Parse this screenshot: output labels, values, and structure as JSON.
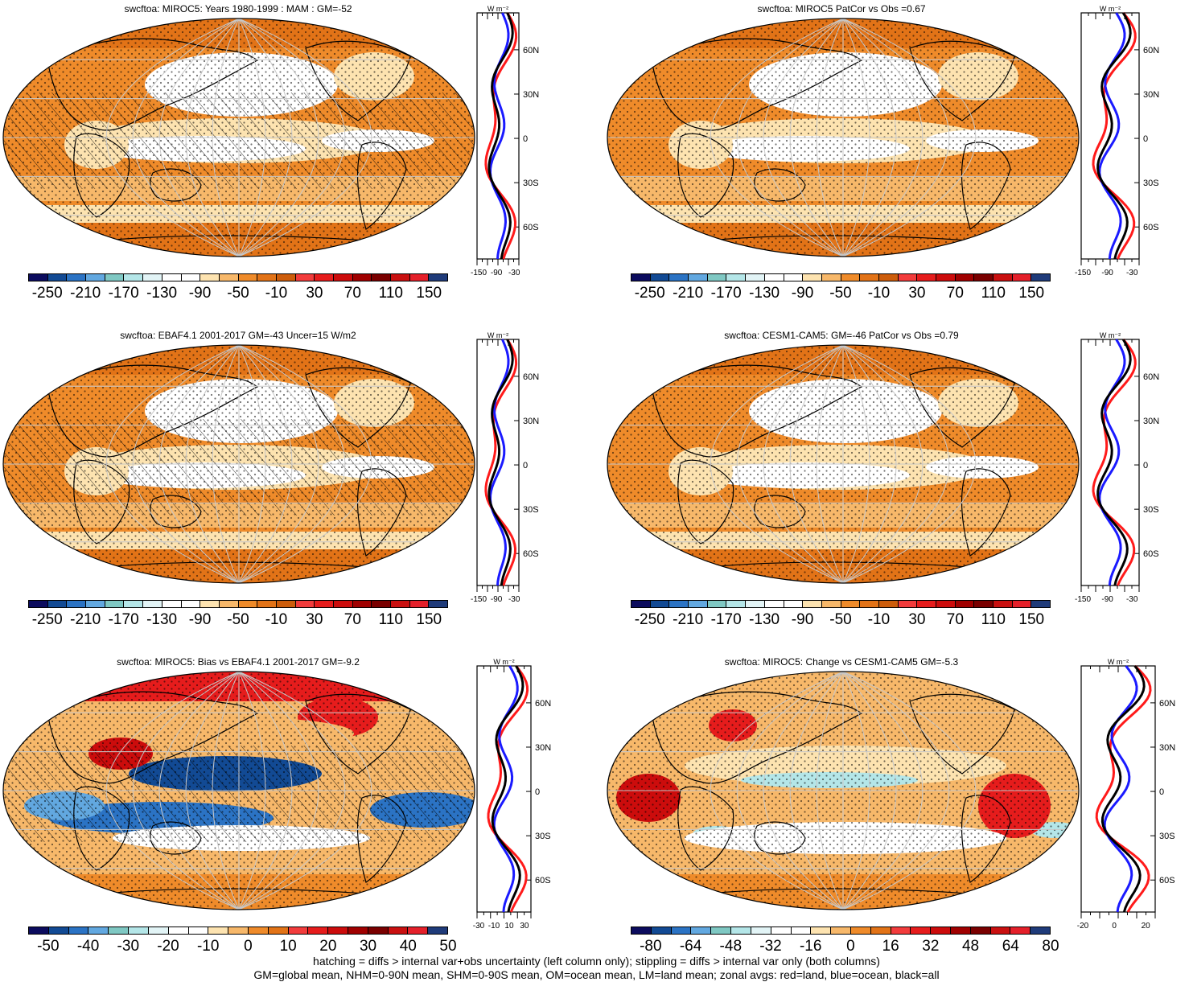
{
  "colors": {
    "land_line": "#ff1a1a",
    "ocean_line": "#1a1aff",
    "all_line": "#000000",
    "grid": "#c8c8c8",
    "coast": "#000000"
  },
  "colorbar_a": {
    "colors": [
      "#0c0c5e",
      "#124a94",
      "#2b73c4",
      "#62a8e0",
      "#7fc8c3",
      "#b4e6e8",
      "#e2f4f6",
      "#ffffff",
      "#ffffff",
      "#fde3b0",
      "#f7b86a",
      "#ef8b2a",
      "#e27317",
      "#cd5d0b",
      "#f23c3c",
      "#e61c1c",
      "#cc0c0c",
      "#a00000",
      "#7a0000",
      "#c91010",
      "#e4202a",
      "#1f3b7a"
    ],
    "labels": [
      "-250",
      "-210",
      "-170",
      "-130",
      "-90",
      "-50",
      "-10",
      "30",
      "70",
      "110",
      "150"
    ]
  },
  "colorbar_b": {
    "colors": [
      "#0c0c5e",
      "#124a94",
      "#2b73c4",
      "#62a8e0",
      "#7fc8c3",
      "#b4e6e8",
      "#e2f4f6",
      "#ffffff",
      "#ffffff",
      "#fde3b0",
      "#f7b86a",
      "#ef8b2a",
      "#e27317",
      "#f23c3c",
      "#e61c1c",
      "#cc0c0c",
      "#a00000",
      "#7a0000",
      "#c91010",
      "#e4202a",
      "#1f3b7a"
    ],
    "labels": [
      "-50",
      "-40",
      "-30",
      "-20",
      "-10",
      "0",
      "10",
      "20",
      "30",
      "40",
      "50"
    ]
  },
  "colorbar_c": {
    "colors": [
      "#0c0c5e",
      "#124a94",
      "#2b73c4",
      "#62a8e0",
      "#7fc8c3",
      "#b4e6e8",
      "#e2f4f6",
      "#ffffff",
      "#ffffff",
      "#fde3b0",
      "#f7b86a",
      "#ef8b2a",
      "#e27317",
      "#f23c3c",
      "#e61c1c",
      "#cc0c0c",
      "#a00000",
      "#7a0000",
      "#c91010",
      "#e4202a",
      "#1f3b7a"
    ],
    "labels": [
      "-80",
      "-64",
      "-48",
      "-32",
      "-16",
      "0",
      "16",
      "32",
      "48",
      "64",
      "80"
    ]
  },
  "zonal_lat_labels": [
    "60N",
    "30N",
    "0",
    "30S",
    "60S"
  ],
  "zonal_unit": "W m⁻²",
  "panels": [
    {
      "title": "swcftoa: MIROC5: Years 1980-1999 : MAM : GM=-52",
      "style": "clim",
      "hatch": true,
      "zonal_ticks": [
        "-150",
        "-90",
        "-30"
      ]
    },
    {
      "title": "swcftoa: MIROC5 PatCor vs Obs =0.67",
      "style": "clim",
      "hatch": false,
      "zonal_ticks": [
        "-150",
        "-90",
        "-30"
      ]
    },
    {
      "title": "swcftoa: EBAF4.1 2001-2017 GM=-43 Uncer=15 W/m2",
      "style": "clim",
      "hatch": true,
      "zonal_ticks": [
        "-150",
        "-90",
        "-30"
      ]
    },
    {
      "title": "swcftoa: CESM1-CAM5: GM=-46 PatCor vs Obs =0.79",
      "style": "clim",
      "hatch": false,
      "zonal_ticks": [
        "-150",
        "-90",
        "-30"
      ]
    },
    {
      "title": "swcftoa: MIROC5: Bias vs EBAF4.1 2001-2017 GM=-9.2",
      "style": "bias",
      "hatch": true,
      "zonal_ticks": [
        "-30",
        "-10",
        "10",
        "30"
      ]
    },
    {
      "title": "swcftoa: MIROC5: Change vs CESM1-CAM5 GM=-5.3",
      "style": "change",
      "hatch": false,
      "zonal_ticks": [
        "-20",
        "0",
        "20"
      ]
    }
  ],
  "footer": {
    "line1": "hatching = diffs > internal var+obs uncertainty (left column only); stippling = diffs > internal var only (both columns)",
    "line2": "GM=global mean, NHM=0-90N mean, SHM=0-90S mean, OM=ocean mean, LM=land mean; zonal avgs: red=land, blue=ocean, black=all"
  }
}
